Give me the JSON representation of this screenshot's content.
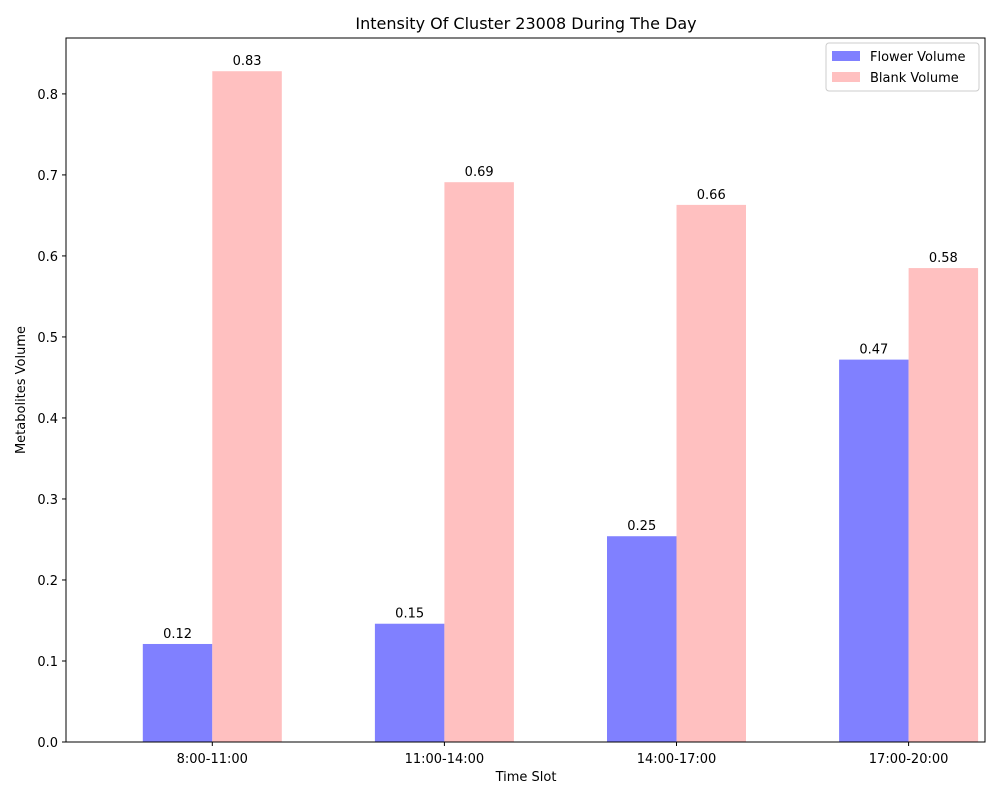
{
  "chart_data": {
    "type": "bar",
    "title": "Intensity Of Cluster 23008 During The Day",
    "xlabel": "Time Slot",
    "ylabel": "Metabolites Volume",
    "categories": [
      "8:00-11:00",
      "11:00-14:00",
      "14:00-17:00",
      "17:00-20:00"
    ],
    "series": [
      {
        "name": "Flower Volume",
        "values": [
          0.121,
          0.146,
          0.254,
          0.472
        ],
        "labels": [
          "0.12",
          "0.15",
          "0.25",
          "0.47"
        ],
        "color": "#8080ff"
      },
      {
        "name": "Blank Volume",
        "values": [
          0.828,
          0.691,
          0.663,
          0.585
        ],
        "labels": [
          "0.83",
          "0.69",
          "0.66",
          "0.58"
        ],
        "color": "#ffc0c0"
      }
    ],
    "ylim": [
      0,
      0.869
    ],
    "yticks": [
      0.0,
      0.1,
      0.2,
      0.3,
      0.4,
      0.5,
      0.6,
      0.7,
      0.8
    ],
    "ytick_labels": [
      "0.0",
      "0.1",
      "0.2",
      "0.3",
      "0.4",
      "0.5",
      "0.6",
      "0.7",
      "0.8"
    ],
    "legend_position": "top-right",
    "grid": false
  }
}
